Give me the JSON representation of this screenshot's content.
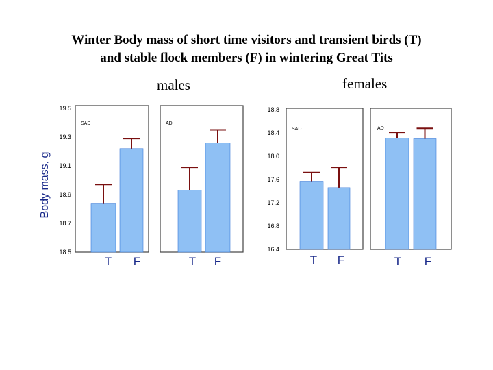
{
  "title_lines": [
    "Winter Body mass of short time visitors and transient birds (T)",
    "and stable flock members (F) in wintering Great Tits"
  ],
  "groups": {
    "males": "males",
    "females": "females"
  },
  "chart_data": [
    {
      "type": "bar",
      "panel": "SAD",
      "group": "males",
      "categories": [
        "T",
        "F"
      ],
      "values": [
        18.84,
        19.22
      ],
      "errors": [
        0.13,
        0.07
      ],
      "ylabel": "Body mass, g",
      "ylim": [
        18.5,
        19.5
      ],
      "yticks": [
        "19.5",
        "19.3",
        "19.1",
        "18.9",
        "18.7",
        "18.5"
      ]
    },
    {
      "type": "bar",
      "panel": "AD",
      "group": "males",
      "categories": [
        "T",
        "F"
      ],
      "values": [
        18.93,
        19.26
      ],
      "errors": [
        0.16,
        0.09
      ],
      "ylim": [
        18.5,
        19.5
      ]
    },
    {
      "type": "bar",
      "panel": "SAD",
      "group": "females",
      "categories": [
        "T",
        "F"
      ],
      "values": [
        17.57,
        17.46
      ],
      "errors": [
        0.15,
        0.35
      ],
      "ylim": [
        16.4,
        18.8
      ],
      "yticks": [
        "18.8",
        "18.4",
        "18.0",
        "17.6",
        "17.2",
        "16.8",
        "16.4"
      ]
    },
    {
      "type": "bar",
      "panel": "AD",
      "group": "females",
      "categories": [
        "T",
        "F"
      ],
      "values": [
        18.31,
        18.3
      ],
      "errors": [
        0.1,
        0.18
      ],
      "ylim": [
        16.4,
        18.8
      ]
    }
  ],
  "colors": {
    "bar": "#8fc0f4",
    "bar_edge": "#3a7ad8",
    "error": "#7a1010",
    "frame": "#444444",
    "axis_text": "#1a2a8a"
  }
}
